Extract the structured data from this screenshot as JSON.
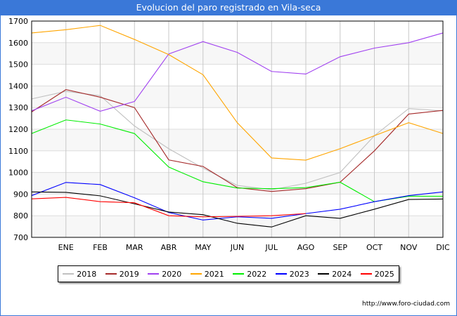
{
  "title": "Evolucion del paro registrado en Vila-seca",
  "url": "http://www.foro-ciudad.com",
  "chart_data": {
    "type": "line",
    "title": "Evolucion del paro registrado en Vila-seca",
    "categories": [
      "",
      "ENE",
      "FEB",
      "MAR",
      "ABR",
      "MAY",
      "JUN",
      "JUL",
      "AGO",
      "SEP",
      "OCT",
      "NOV",
      "DIC"
    ],
    "ylim": [
      700,
      1700
    ],
    "yticks": [
      700,
      800,
      900,
      1000,
      1100,
      1200,
      1300,
      1400,
      1500,
      1600,
      1700
    ],
    "grid": true,
    "legend_position": "bottom",
    "series": [
      {
        "name": "2018",
        "color": "#c0c0c0",
        "values": [
          1340,
          1375,
          1355,
          1215,
          1110,
          1020,
          940,
          920,
          950,
          1000,
          1170,
          1295,
          1285
        ]
      },
      {
        "name": "2019",
        "color": "#a52a2a",
        "values": [
          1280,
          1383,
          1348,
          1300,
          1058,
          1028,
          930,
          912,
          925,
          955,
          1100,
          1270,
          1287
        ]
      },
      {
        "name": "2020",
        "color": "#a040f0",
        "values": [
          1285,
          1348,
          1283,
          1328,
          1548,
          1605,
          1555,
          1467,
          1455,
          1535,
          1575,
          1600,
          1645
        ]
      },
      {
        "name": "2021",
        "color": "#ffa500",
        "values": [
          1645,
          1660,
          1680,
          1615,
          1545,
          1452,
          1230,
          1067,
          1057,
          1110,
          1170,
          1230,
          1180
        ]
      },
      {
        "name": "2022",
        "color": "#00ee00",
        "values": [
          1180,
          1243,
          1224,
          1180,
          1025,
          957,
          928,
          925,
          930,
          955,
          865,
          890,
          890
        ]
      },
      {
        "name": "2023",
        "color": "#0000ff",
        "values": [
          893,
          954,
          944,
          883,
          815,
          780,
          795,
          788,
          810,
          830,
          865,
          893,
          910
        ]
      },
      {
        "name": "2024",
        "color": "#000000",
        "values": [
          910,
          908,
          892,
          855,
          817,
          805,
          765,
          748,
          800,
          788,
          830,
          875,
          877
        ]
      },
      {
        "name": "2025",
        "color": "#ff0000",
        "values": [
          878,
          885,
          865,
          860,
          800,
          795,
          797,
          800,
          810,
          null,
          null,
          null,
          null
        ]
      }
    ]
  }
}
